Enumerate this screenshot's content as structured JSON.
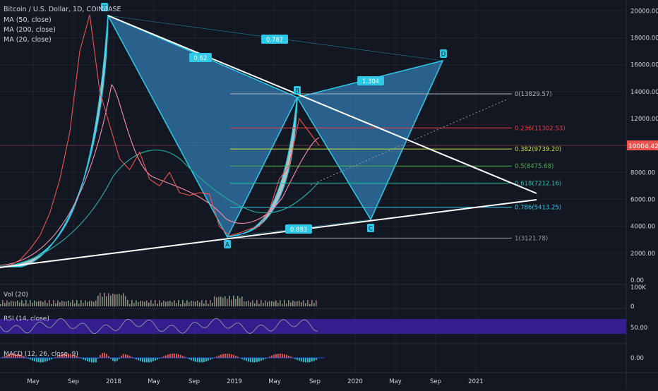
{
  "header": {
    "symbol_line": "Bitcoin / U.S. Dollar, 1D, COINBASE",
    "ma50": "MA (50, close)",
    "ma200": "MA (200, close)",
    "ma20": "MA (20, close)"
  },
  "price_badge": "10004.42",
  "panes": {
    "vol_label": "Vol (20)",
    "rsi_label": "RSI (14, close)",
    "macd_label": "MACD (12, 26, close, 9)"
  },
  "colors": {
    "background": "#131722",
    "pattern_fill": "#2f74a8",
    "pattern_stroke": "#2ec9e6",
    "price_line": "#ef5350",
    "rsi_band": "#3b1fa0",
    "trendline": "#ffffff"
  },
  "chart_data": [
    {
      "type": "line",
      "pane": "price",
      "title": "Bitcoin / U.S. Dollar, 1D, COINBASE",
      "x_ticks": [
        "May",
        "Sep",
        "2018",
        "May",
        "Sep",
        "2019",
        "May",
        "Sep",
        "2020",
        "May",
        "Sep",
        "2021"
      ],
      "y_ticks": [
        0,
        2000,
        4000,
        6000,
        8000,
        10000,
        12000,
        14000,
        16000,
        18000,
        20000
      ],
      "ylim": [
        0,
        20800
      ],
      "last_price": 10004.42,
      "harmonic_pattern": {
        "points": [
          {
            "label": "X",
            "value": 19700
          },
          {
            "label": "A",
            "value": 3121.78
          },
          {
            "label": "B",
            "value": 13829.57
          },
          {
            "label": "C",
            "value": 4500
          },
          {
            "label": "D",
            "value": 16300
          }
        ],
        "ratios": [
          "0.62",
          "0.787",
          "1.304",
          "0.883"
        ]
      },
      "fibonacci_levels": [
        {
          "label": "0(13829.57)",
          "ratio": 0,
          "value": 13829.57,
          "color": "#b2b5be"
        },
        {
          "label": "0.236(11302.53)",
          "ratio": 0.236,
          "value": 11302.53,
          "color": "#f23645"
        },
        {
          "label": "0.382(9739.20)",
          "ratio": 0.382,
          "value": 9739.2,
          "color": "#c0e040"
        },
        {
          "label": "0.5(8475.68)",
          "ratio": 0.5,
          "value": 8475.68,
          "color": "#4caf50"
        },
        {
          "label": "0.618(7212.16)",
          "ratio": 0.618,
          "value": 7212.16,
          "color": "#26c6a6"
        },
        {
          "label": "0.786(5413.25)",
          "ratio": 0.786,
          "value": 5413.25,
          "color": "#2ec9e6"
        },
        {
          "label": "1(3121.78)",
          "ratio": 1,
          "value": 3121.78,
          "color": "#9598a1"
        }
      ],
      "series": [
        {
          "values": [
            900,
            1100,
            1500,
            2300,
            3300,
            5000,
            7500,
            11000,
            17000,
            19700,
            14000,
            11500,
            9000,
            8200,
            9500,
            7500,
            7000,
            8000,
            6500,
            6300,
            6500,
            6400,
            4000,
            3300,
            3500,
            3800,
            4000,
            5200,
            7500,
            8500,
            12000,
            11000,
            10004.42
          ]
        }
      ]
    },
    {
      "type": "bar",
      "pane": "volume",
      "title": "Vol (20)",
      "y_ticks": [
        "100K",
        "0"
      ]
    },
    {
      "type": "line",
      "pane": "rsi",
      "title": "RSI (14, close)",
      "y_ticks": [
        50.0
      ],
      "band": [
        30,
        70
      ]
    },
    {
      "type": "bar",
      "pane": "macd",
      "title": "MACD (12, 26, close, 9)",
      "y_ticks": [
        0.0
      ]
    }
  ]
}
